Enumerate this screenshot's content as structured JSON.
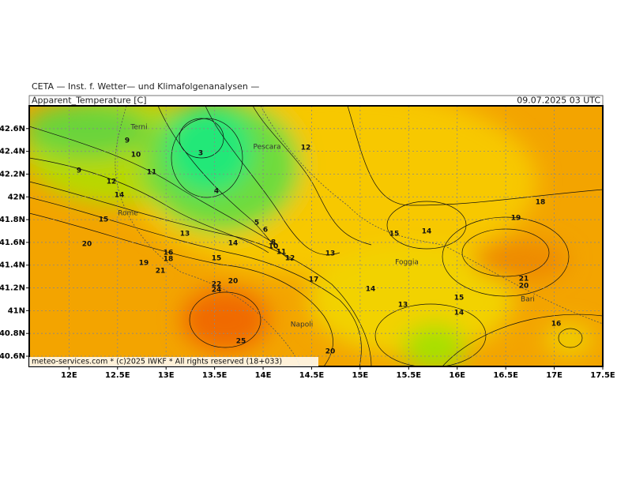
{
  "header": {
    "institute": "CETA — Inst. f. Wetter— und Klimafolgenanalysen —",
    "title": "Apparent_Temperature [C]",
    "valid_time": "09.07.2025 03 UTC"
  },
  "map": {
    "xlim": [
      11.59,
      17.5
    ],
    "ylim": [
      40.51,
      42.8
    ],
    "xticks": [
      {
        "value": 12,
        "label": "12E"
      },
      {
        "value": 12.5,
        "label": "12.5E"
      },
      {
        "value": 13,
        "label": "13E"
      },
      {
        "value": 13.5,
        "label": "13.5E"
      },
      {
        "value": 14,
        "label": "14E"
      },
      {
        "value": 14.5,
        "label": "14.5E"
      },
      {
        "value": 15,
        "label": "15E"
      },
      {
        "value": 15.5,
        "label": "15.5E"
      },
      {
        "value": 16,
        "label": "16E"
      },
      {
        "value": 16.5,
        "label": "16.5E"
      },
      {
        "value": 17,
        "label": "17E"
      },
      {
        "value": 17.5,
        "label": "17.5E"
      }
    ],
    "yticks": [
      {
        "value": 40.6,
        "label": "40.6N"
      },
      {
        "value": 40.8,
        "label": "40.8N"
      },
      {
        "value": 41,
        "label": "41N"
      },
      {
        "value": 41.2,
        "label": "41.2N"
      },
      {
        "value": 41.4,
        "label": "41.4N"
      },
      {
        "value": 41.6,
        "label": "41.6N"
      },
      {
        "value": 41.8,
        "label": "41.8N"
      },
      {
        "value": 42,
        "label": "42N"
      },
      {
        "value": 42.2,
        "label": "42.2N"
      },
      {
        "value": 42.4,
        "label": "42.4N"
      },
      {
        "value": 42.6,
        "label": "42.6N"
      }
    ],
    "cities": [
      "Terni",
      "Pescara",
      "Rome",
      "Foggia",
      "Bari",
      "Napoli"
    ],
    "contour_labels": [
      9,
      10,
      9,
      11,
      12,
      14,
      15,
      3,
      4,
      12,
      5,
      6,
      8,
      13,
      14,
      20,
      16,
      18,
      19,
      15,
      21,
      10,
      11,
      12,
      13,
      17,
      20,
      22,
      24,
      14,
      15,
      14,
      13,
      15,
      14,
      18,
      19,
      21,
      20,
      16,
      25,
      20
    ],
    "footer": "meteo-services.com * (c)2025 IWKF * All rights reserved (18+033)"
  }
}
